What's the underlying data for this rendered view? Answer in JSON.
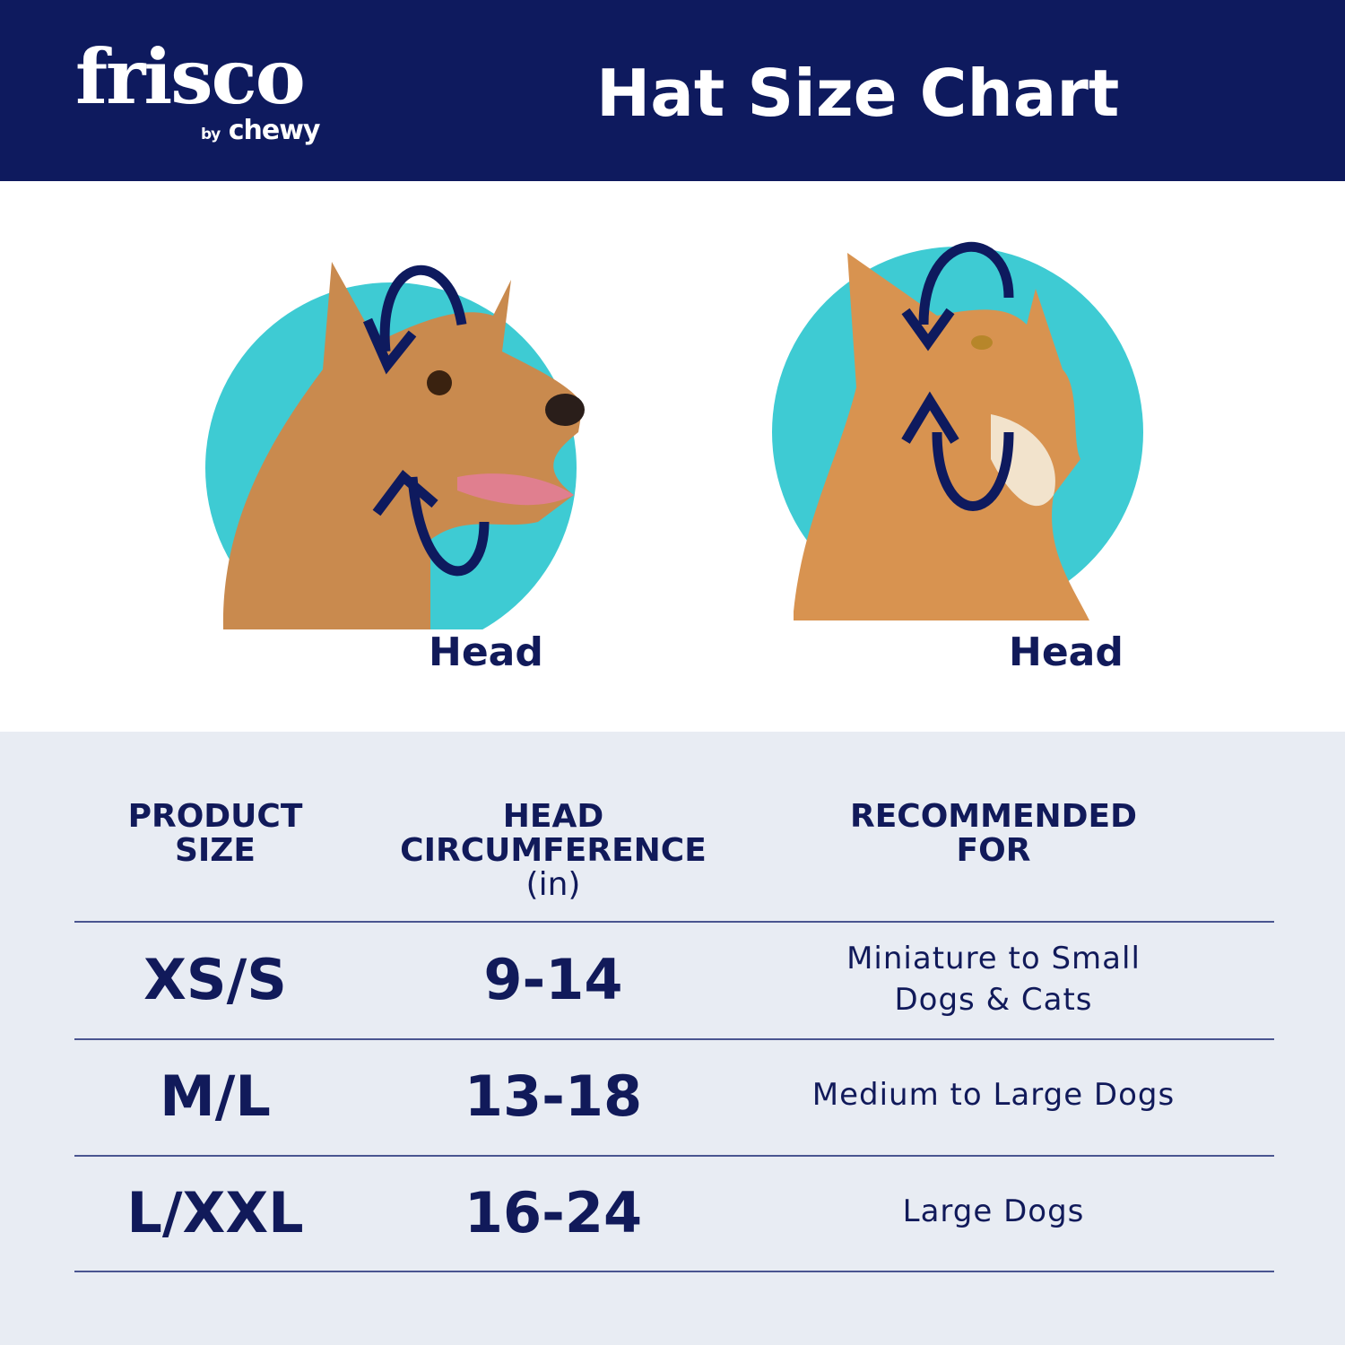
{
  "header": {
    "logo": {
      "brand": "frisco",
      "by": "by",
      "parent": "chewy"
    },
    "title": "Hat Size Chart",
    "bg_color": "#0e1a5e"
  },
  "illustrations": [
    {
      "pet": "dog",
      "label": "Head",
      "icon": "circumference-arrows-icon"
    },
    {
      "pet": "cat",
      "label": "Head",
      "icon": "circumference-arrows-icon"
    }
  ],
  "colors": {
    "navy": "#111a5a",
    "teal": "#3ecbd3",
    "table_bg": "#e8ecf3"
  },
  "table": {
    "headers": [
      {
        "lines": [
          "PRODUCT",
          "SIZE"
        ]
      },
      {
        "lines": [
          "HEAD",
          "CIRCUMFERENCE"
        ],
        "unit": "(in)"
      },
      {
        "lines": [
          "RECOMMENDED",
          "FOR"
        ]
      }
    ],
    "rows": [
      {
        "size": "XS/S",
        "circumference": "9-14",
        "recommended": [
          "Miniature to Small",
          "Dogs & Cats"
        ]
      },
      {
        "size": "M/L",
        "circumference": "13-18",
        "recommended": [
          "Medium to Large Dogs"
        ]
      },
      {
        "size": "L/XXL",
        "circumference": "16-24",
        "recommended": [
          "Large Dogs"
        ]
      }
    ]
  }
}
